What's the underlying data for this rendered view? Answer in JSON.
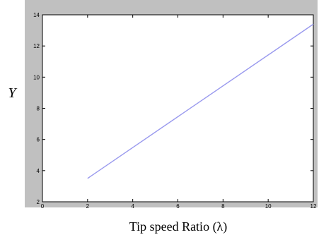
{
  "chart_data": {
    "type": "line",
    "title": "",
    "xlabel": "Tip speed Ratio (λ)",
    "ylabel": "Υ",
    "xlim": [
      0,
      12
    ],
    "ylim": [
      2,
      14
    ],
    "xticks": [
      "0",
      "2",
      "4",
      "6",
      "8",
      "10",
      "12"
    ],
    "yticks": [
      "2",
      "4",
      "6",
      "8",
      "10",
      "12",
      "14"
    ],
    "grid": false,
    "legend": "none",
    "series": [
      {
        "color": "#9999ee",
        "x": [
          2,
          12
        ],
        "y": [
          3.5,
          13.4
        ]
      }
    ],
    "colors": {
      "figure_bg": "#c0c0c0",
      "axes_bg": "#ffffff"
    }
  }
}
